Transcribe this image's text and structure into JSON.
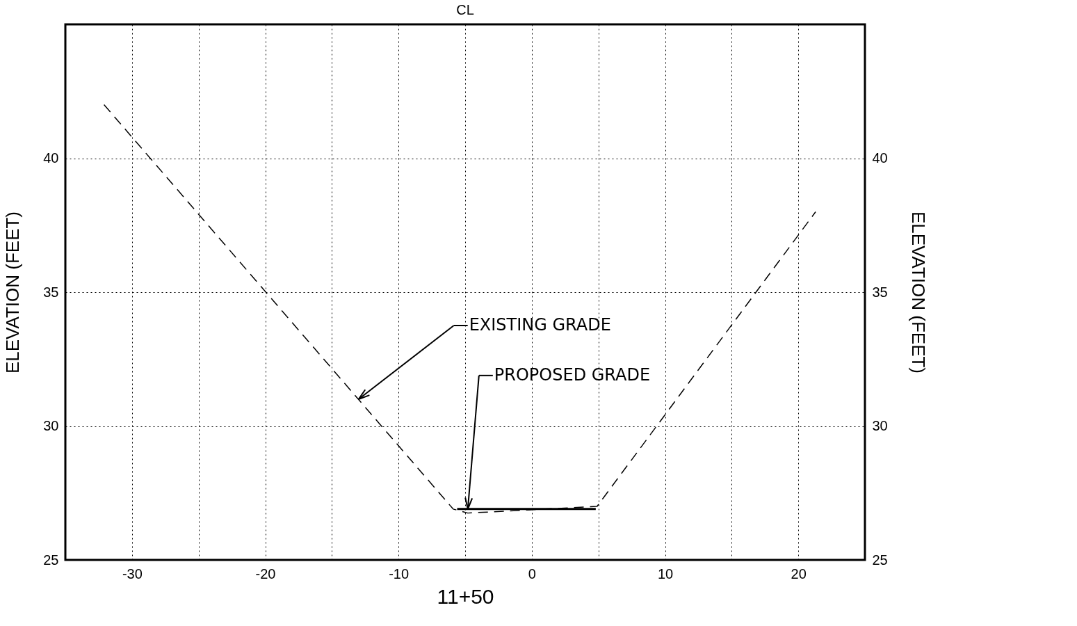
{
  "chart_data": {
    "type": "line",
    "title": "CL",
    "xlabel": "11+50",
    "ylabel": "ELEVATION (FEET)",
    "y2label": "ELEVATION (FEET)",
    "xlim": [
      -35,
      25
    ],
    "xticks": [
      -30,
      {
        "value": -25,
        "label": null
      },
      -20,
      {
        "value": -15,
        "label": null
      },
      -10,
      {
        "value": -5,
        "label": null
      },
      0,
      {
        "value": 5,
        "label": null
      },
      10,
      {
        "value": 15,
        "label": null
      },
      20
    ],
    "ylim": [
      25,
      45
    ],
    "yticks": [
      25,
      30,
      35,
      40
    ],
    "y2lim": [
      25,
      45
    ],
    "y2ticks": [
      25,
      30,
      35,
      40
    ],
    "grid": true,
    "marker": "none",
    "series": [
      {
        "color": "#000000",
        "line_style": "dashed",
        "x": [
          -32.1,
          -5.9,
          -4.8,
          4.9,
          21.3
        ],
        "values": [
          42.0,
          26.9,
          26.75,
          27.0,
          38.0
        ]
      },
      {
        "color": "#000000",
        "line_style": "solid",
        "x": [
          -5.6,
          4.8
        ],
        "values": [
          26.9,
          26.9
        ]
      }
    ],
    "annotations": [
      {
        "text": "EXISTING GRADE",
        "x": -13.0,
        "y": 31.0
      },
      {
        "text": "PROPOSED GRADE",
        "x": -4.8,
        "y": 26.9
      }
    ]
  }
}
